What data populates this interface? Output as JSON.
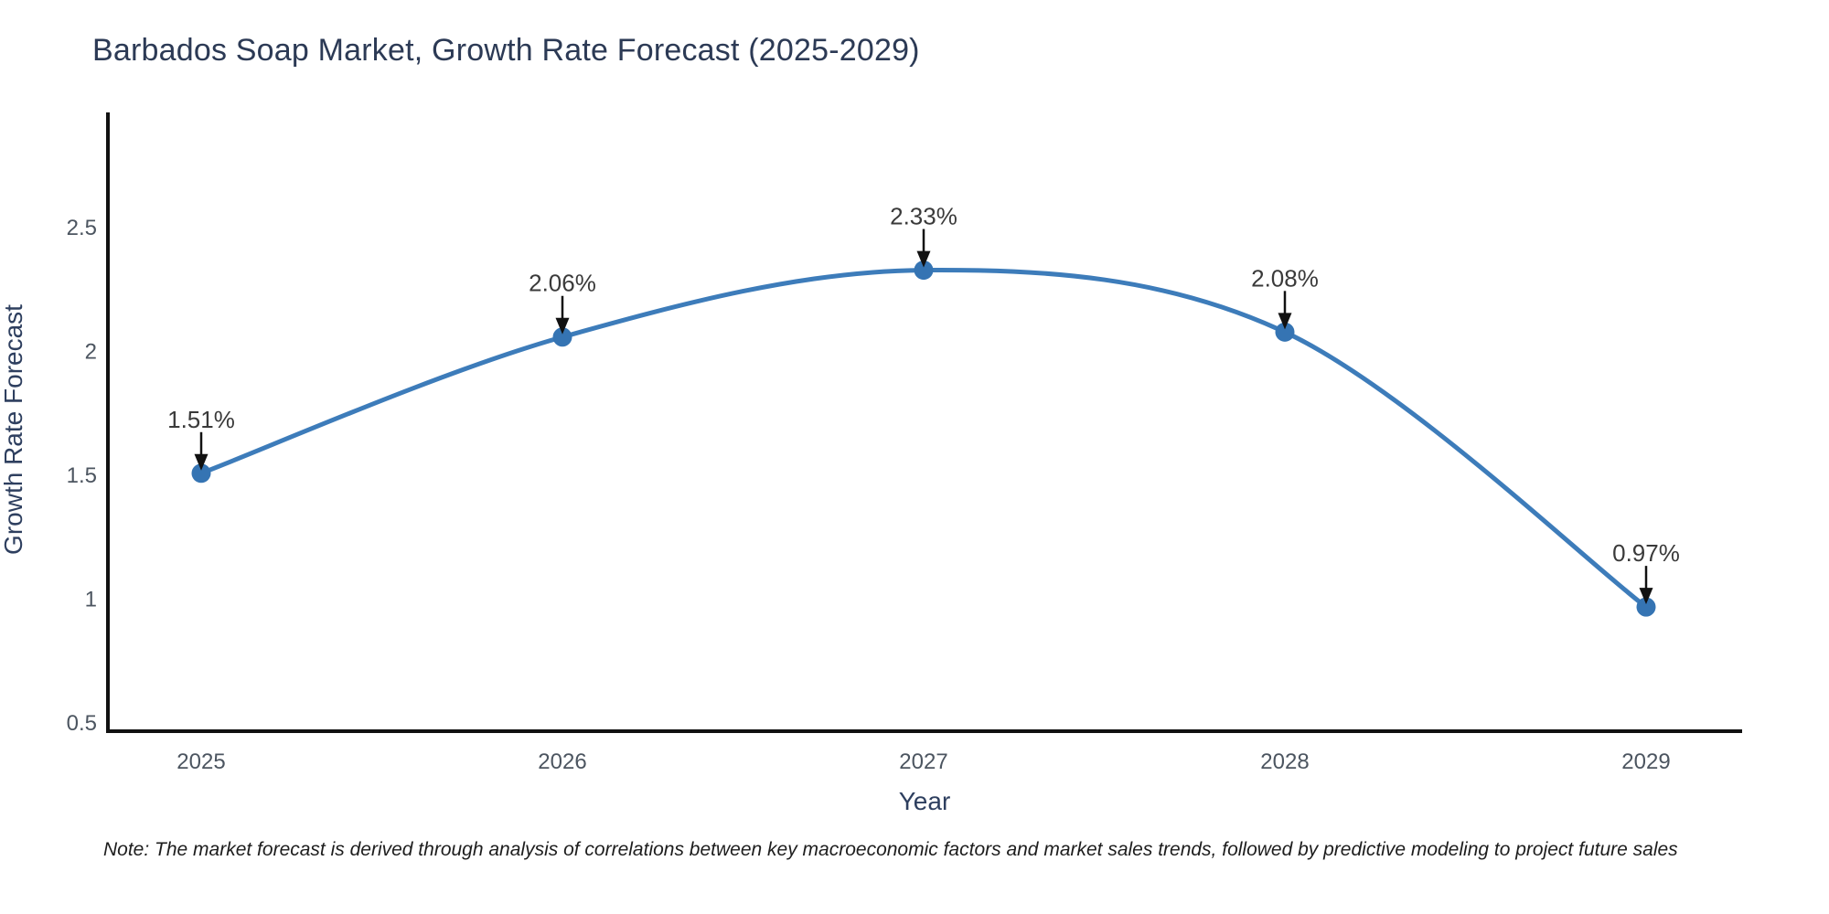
{
  "note": {
    "text": "Note: The market forecast is derived through analysis of correlations between key macroeconomic factors and market sales trends, followed by predictive modeling to project future sales"
  },
  "chart_data": {
    "type": "line",
    "title": "Barbados Soap Market, Growth Rate Forecast (2025-2029)",
    "xlabel": "Year",
    "ylabel": "Growth Rate Forecast",
    "categories": [
      "2025",
      "2026",
      "2027",
      "2028",
      "2029"
    ],
    "x": [
      2025,
      2026,
      2027,
      2028,
      2029
    ],
    "values": [
      1.51,
      2.06,
      2.33,
      2.08,
      0.97
    ],
    "point_labels": [
      "1.51%",
      "2.06%",
      "2.33%",
      "2.08%",
      "0.97%"
    ],
    "y_ticks": [
      0.5,
      1,
      1.5,
      2,
      2.5
    ],
    "y_tick_labels": [
      "0.5",
      "1",
      "1.5",
      "2",
      "2.5"
    ],
    "ylim": [
      0.5,
      2.96
    ],
    "xlim": [
      2024.74,
      2029.27
    ],
    "grid": false,
    "legend": "none",
    "line_shape": "spline",
    "marker": "circle",
    "annotation_arrows": true,
    "colors": {
      "line": "#3d7cba",
      "marker": "#3574b3",
      "axis": "#111111",
      "tick_text": "#4c5560",
      "axis_title_text": "#2e3f5f",
      "title_text": "#2c3a55",
      "annotation_text": "#3a3a3a",
      "arrow": "#111111",
      "note_text": "#1d1d1d",
      "background": "#ffffff"
    }
  }
}
